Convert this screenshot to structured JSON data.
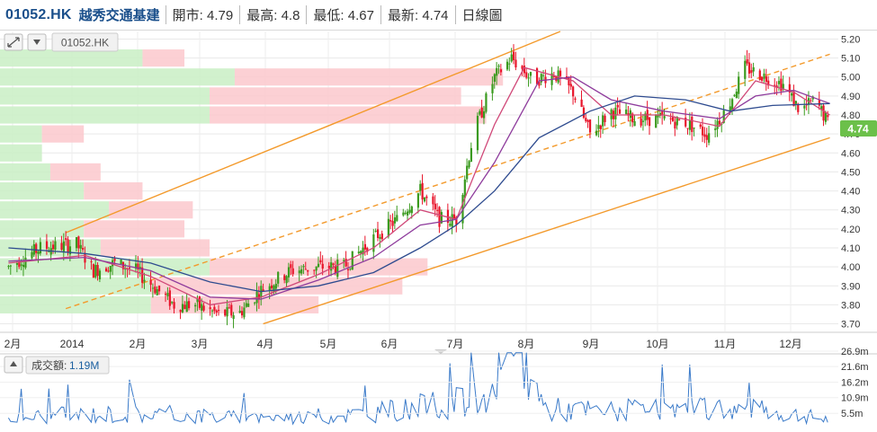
{
  "header": {
    "symbol": "01052.HK",
    "name": "越秀交通基建",
    "open_label": "開市:",
    "open": "4.79",
    "high_label": "最高:",
    "high": "4.8",
    "low_label": "最低:",
    "low": "4.67",
    "last_label": "最新:",
    "last": "4.74",
    "chart_kind": "日線圖"
  },
  "toolbar": {
    "symbol_chip": "01052.HK"
  },
  "volume_panel": {
    "label": "成交額:",
    "value": "1.19M"
  },
  "last_price_tag": "4.74",
  "colors": {
    "up": "#3a9a1e",
    "down": "#e8142a",
    "channel": "#f39a2c",
    "ma_short": "#d04878",
    "ma_mid": "#8e3b9c",
    "ma_long": "#2e4b8f",
    "volume": "#3a7ac9",
    "vp_buy": "#c9eec4",
    "vp_sell": "#fbc8cc",
    "tag": "#6cc04a"
  },
  "chart_data": {
    "type": "candlestick",
    "price_axis": {
      "ticks": [
        "5.20",
        "5.10",
        "5.00",
        "4.90",
        "4.80",
        "4.70",
        "4.60",
        "4.50",
        "4.40",
        "4.30",
        "4.20",
        "4.10",
        "4.00",
        "3.90",
        "3.80",
        "3.70"
      ],
      "range": [
        3.66,
        5.24
      ]
    },
    "x_ticks": [
      "2月",
      "2014",
      "2月",
      "3月",
      "4月",
      "5月",
      "6月",
      "7月",
      "8月",
      "9月",
      "10月",
      "11月",
      "12月"
    ],
    "volume_axis": {
      "ticks": [
        "26.9m",
        "21.6m",
        "16.2m",
        "10.9m",
        "5.5m"
      ],
      "range": [
        0,
        26.9
      ]
    },
    "price_path": [
      [
        "2013-12-05",
        4.0
      ],
      [
        "2013-12-20",
        4.1
      ],
      [
        "2014-01-06",
        4.12
      ],
      [
        "2014-01-14",
        3.98
      ],
      [
        "2014-01-24",
        4.02
      ],
      [
        "2014-02-03",
        3.98
      ],
      [
        "2014-02-13",
        3.88
      ],
      [
        "2014-02-21",
        3.8
      ],
      [
        "2014-03-03",
        3.8
      ],
      [
        "2014-03-14",
        3.75
      ],
      [
        "2014-03-24",
        3.76
      ],
      [
        "2014-04-03",
        3.88
      ],
      [
        "2014-04-17",
        3.98
      ],
      [
        "2014-04-30",
        4.0
      ],
      [
        "2014-05-12",
        4.0
      ],
      [
        "2014-05-26",
        4.15
      ],
      [
        "2014-06-06",
        4.25
      ],
      [
        "2014-06-17",
        4.4
      ],
      [
        "2014-06-26",
        4.25
      ],
      [
        "2014-07-04",
        4.25
      ],
      [
        "2014-07-12",
        4.7
      ],
      [
        "2014-07-22",
        5.0
      ],
      [
        "2014-07-30",
        5.1
      ],
      [
        "2014-08-09",
        4.98
      ],
      [
        "2014-08-19",
        5.02
      ],
      [
        "2014-08-28",
        4.92
      ],
      [
        "2014-09-05",
        4.7
      ],
      [
        "2014-09-15",
        4.82
      ],
      [
        "2014-09-26",
        4.78
      ],
      [
        "2014-10-08",
        4.78
      ],
      [
        "2014-10-20",
        4.76
      ],
      [
        "2014-10-30",
        4.7
      ],
      [
        "2014-11-08",
        4.82
      ],
      [
        "2014-11-17",
        5.05
      ],
      [
        "2014-11-27",
        5.0
      ],
      [
        "2014-12-05",
        4.96
      ],
      [
        "2014-12-13",
        4.82
      ],
      [
        "2014-12-20",
        4.88
      ],
      [
        "2014-12-27",
        4.74
      ]
    ],
    "moving_average_series": [
      {
        "key": "ma_short",
        "points": [
          [
            "2013-12-05",
            4.02
          ],
          [
            "2014-01-10",
            4.06
          ],
          [
            "2014-02-10",
            3.95
          ],
          [
            "2014-03-10",
            3.8
          ],
          [
            "2014-04-03",
            3.84
          ],
          [
            "2014-04-30",
            3.96
          ],
          [
            "2014-05-26",
            4.1
          ],
          [
            "2014-06-17",
            4.3
          ],
          [
            "2014-07-04",
            4.25
          ],
          [
            "2014-07-22",
            4.75
          ],
          [
            "2014-08-05",
            5.05
          ],
          [
            "2014-08-28",
            4.98
          ],
          [
            "2014-09-15",
            4.8
          ],
          [
            "2014-10-10",
            4.8
          ],
          [
            "2014-11-05",
            4.74
          ],
          [
            "2014-11-22",
            4.98
          ],
          [
            "2014-12-10",
            4.92
          ],
          [
            "2014-12-27",
            4.8
          ]
        ]
      },
      {
        "key": "ma_mid",
        "points": [
          [
            "2013-12-05",
            4.03
          ],
          [
            "2014-01-10",
            4.05
          ],
          [
            "2014-02-10",
            3.98
          ],
          [
            "2014-03-10",
            3.84
          ],
          [
            "2014-04-03",
            3.83
          ],
          [
            "2014-04-30",
            3.93
          ],
          [
            "2014-05-26",
            4.05
          ],
          [
            "2014-06-17",
            4.22
          ],
          [
            "2014-07-04",
            4.25
          ],
          [
            "2014-07-22",
            4.55
          ],
          [
            "2014-08-12",
            4.98
          ],
          [
            "2014-08-28",
            5.0
          ],
          [
            "2014-09-15",
            4.88
          ],
          [
            "2014-10-10",
            4.82
          ],
          [
            "2014-11-05",
            4.78
          ],
          [
            "2014-11-22",
            4.9
          ],
          [
            "2014-12-10",
            4.93
          ],
          [
            "2014-12-27",
            4.86
          ]
        ]
      },
      {
        "key": "ma_long",
        "points": [
          [
            "2013-12-05",
            4.1
          ],
          [
            "2014-01-10",
            4.07
          ],
          [
            "2014-02-10",
            4.02
          ],
          [
            "2014-03-10",
            3.92
          ],
          [
            "2014-04-03",
            3.87
          ],
          [
            "2014-04-30",
            3.9
          ],
          [
            "2014-05-26",
            3.97
          ],
          [
            "2014-06-17",
            4.1
          ],
          [
            "2014-07-04",
            4.22
          ],
          [
            "2014-07-22",
            4.4
          ],
          [
            "2014-08-12",
            4.68
          ],
          [
            "2014-09-05",
            4.82
          ],
          [
            "2014-09-26",
            4.9
          ],
          [
            "2014-10-20",
            4.88
          ],
          [
            "2014-11-10",
            4.82
          ],
          [
            "2014-11-30",
            4.85
          ],
          [
            "2014-12-27",
            4.86
          ]
        ]
      }
    ],
    "trend_channel": {
      "upper": [
        [
          "2014-01-01",
          4.18
        ],
        [
          "2014-08-22",
          5.24
        ]
      ],
      "middle": [
        [
          "2014-01-01",
          3.78
        ],
        [
          "2014-12-27",
          5.12
        ]
      ],
      "lower": [
        [
          "2014-04-04",
          3.7
        ],
        [
          "2014-12-27",
          4.68
        ]
      ]
    },
    "volume_profile": [
      {
        "price": 5.1,
        "buy": 0.17,
        "sell": 0.05
      },
      {
        "price": 5.0,
        "buy": 0.28,
        "sell": 0.32
      },
      {
        "price": 4.9,
        "buy": 0.25,
        "sell": 0.3
      },
      {
        "price": 4.8,
        "buy": 0.25,
        "sell": 0.33
      },
      {
        "price": 4.7,
        "buy": 0.05,
        "sell": 0.05
      },
      {
        "price": 4.6,
        "buy": 0.05,
        "sell": 0.0
      },
      {
        "price": 4.5,
        "buy": 0.06,
        "sell": 0.06
      },
      {
        "price": 4.4,
        "buy": 0.1,
        "sell": 0.07
      },
      {
        "price": 4.3,
        "buy": 0.13,
        "sell": 0.1
      },
      {
        "price": 4.2,
        "buy": 0.1,
        "sell": 0.12
      },
      {
        "price": 4.1,
        "buy": 0.12,
        "sell": 0.13
      },
      {
        "price": 4.0,
        "buy": 0.25,
        "sell": 0.26
      },
      {
        "price": 3.9,
        "buy": 0.18,
        "sell": 0.3
      },
      {
        "price": 3.8,
        "buy": 0.18,
        "sell": 0.2
      }
    ],
    "volume_path": [
      [
        "2013-12-05",
        4
      ],
      [
        "2014-01-15",
        5
      ],
      [
        "2014-02-20",
        5
      ],
      [
        "2014-03-20",
        4
      ],
      [
        "2014-04-20",
        4
      ],
      [
        "2014-05-20",
        5
      ],
      [
        "2014-06-15",
        7
      ],
      [
        "2014-07-05",
        9
      ],
      [
        "2014-07-20",
        8
      ],
      [
        "2014-08-01",
        26
      ],
      [
        "2014-08-15",
        7
      ],
      [
        "2014-09-10",
        6
      ],
      [
        "2014-10-10",
        6
      ],
      [
        "2014-11-10",
        7
      ],
      [
        "2014-12-10",
        5
      ],
      [
        "2014-12-27",
        3
      ]
    ]
  }
}
